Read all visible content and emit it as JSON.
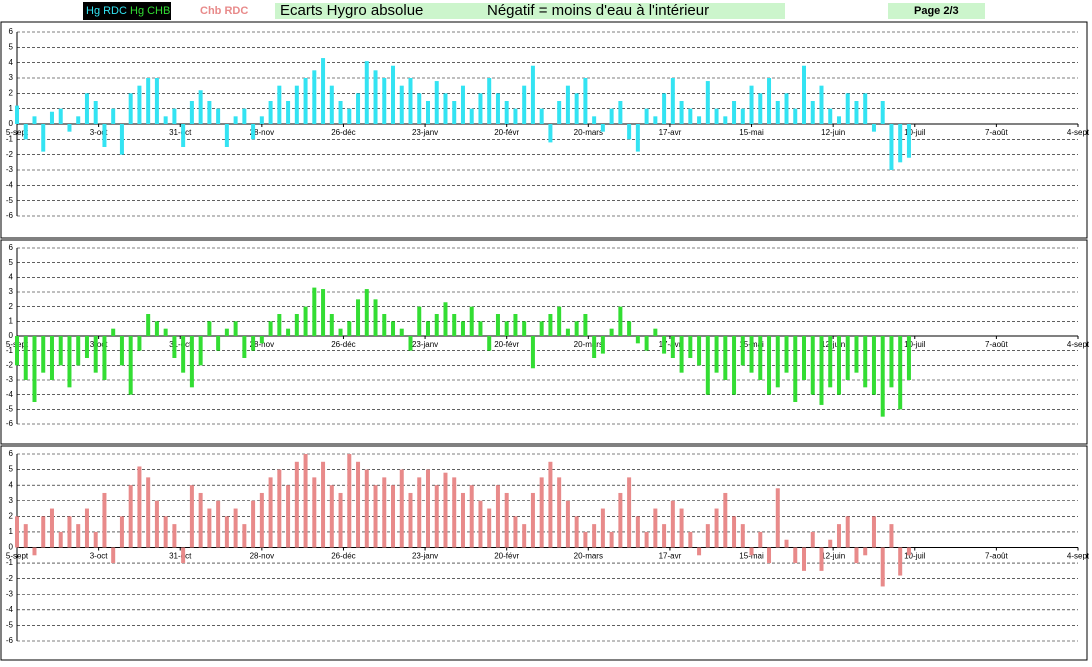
{
  "header": {
    "title": "Ecarts Hygro absolue",
    "subtitle": "Négatif = moins d'eau à l'intérieur",
    "page": "Page 2/3"
  },
  "chart_data": [
    {
      "type": "bar",
      "series": [
        {
          "name": "Hg RDC",
          "color": "#33e3f2",
          "values": [
            1.2,
            -1,
            0.5,
            -1.8,
            0.8,
            1,
            -0.5,
            0.5,
            2,
            1.5,
            -1.5,
            1,
            -2,
            2,
            2.5,
            3,
            3,
            0.5,
            1,
            -1.5,
            1.5,
            2.2,
            1.5,
            1,
            -1.5,
            0.5,
            1,
            -1,
            0.5,
            1.5,
            2.5,
            1.5,
            2.5,
            3,
            3.5,
            4.3,
            2.5,
            1.5,
            1,
            2,
            4.1,
            3.5,
            3,
            3.8,
            2.5,
            3,
            2,
            1.5,
            2.8,
            2,
            1.5,
            2.5,
            1,
            2,
            3,
            2,
            1.5,
            1,
            2.5,
            3.8,
            1,
            -1.2,
            1.5,
            2.5,
            2,
            3,
            0.5,
            -0.5,
            1,
            1.5,
            -1,
            -1.8,
            1,
            0.5,
            2,
            3,
            1.5,
            1,
            0.5,
            2.8,
            1,
            0.5,
            1.5,
            1,
            2.5,
            2,
            3,
            1.5,
            2,
            1,
            3.8,
            1.5,
            2.5,
            1,
            0.5,
            2,
            1.5,
            2,
            -0.5,
            1.5,
            -3,
            -2.5,
            -2.2
          ]
        }
      ],
      "x": [
        0,
        3,
        6,
        9,
        12,
        15,
        18,
        21,
        24,
        27,
        30,
        33,
        36,
        39,
        42,
        45,
        48,
        51,
        54,
        57,
        60,
        63,
        66,
        69,
        72,
        75,
        78,
        81,
        84,
        87,
        90,
        93,
        96,
        99,
        102,
        105,
        108,
        111,
        114,
        117,
        120,
        123,
        126,
        129,
        132,
        135,
        138,
        141,
        144,
        147,
        150,
        153,
        156,
        159,
        162,
        165,
        168,
        171,
        174,
        177,
        180,
        183,
        186,
        189,
        192,
        195,
        198,
        201,
        204,
        207,
        210,
        213,
        216,
        219,
        222,
        225,
        228,
        231,
        234,
        237,
        240,
        243,
        246,
        249,
        252,
        255,
        258,
        261,
        264,
        267,
        270,
        273,
        276,
        279,
        282,
        285,
        288,
        291,
        294,
        297,
        300,
        303,
        306
      ],
      "xlim": [
        0,
        364
      ],
      "xticks": [
        {
          "value": 0,
          "label": "5-sept"
        },
        {
          "value": 28,
          "label": "3-oct"
        },
        {
          "value": 56,
          "label": "31-oct"
        },
        {
          "value": 84,
          "label": "28-nov"
        },
        {
          "value": 112,
          "label": "26-déc"
        },
        {
          "value": 140,
          "label": "23-janv"
        },
        {
          "value": 168,
          "label": "20-févr"
        },
        {
          "value": 196,
          "label": "20-mars"
        },
        {
          "value": 224,
          "label": "17-avr"
        },
        {
          "value": 252,
          "label": "15-mai"
        },
        {
          "value": 280,
          "label": "12-juin"
        },
        {
          "value": 308,
          "label": "10-juil"
        },
        {
          "value": 336,
          "label": "7-août"
        },
        {
          "value": 364,
          "label": "4-sept"
        }
      ],
      "ylim": [
        -6,
        6
      ],
      "yticks": [
        -6,
        -5,
        -4,
        -3,
        -2,
        -1,
        0,
        1,
        2,
        3,
        4,
        5,
        6
      ],
      "grid": true
    },
    {
      "type": "bar",
      "series": [
        {
          "name": "Hg CHB",
          "color": "#33dd33",
          "values": [
            -2,
            -3,
            -4.5,
            -2.5,
            -3,
            -2,
            -3.5,
            -2,
            -1.5,
            -2.5,
            -3,
            0.5,
            -2,
            -4,
            -1,
            1.5,
            1,
            0.5,
            -1.5,
            -2.5,
            -3.5,
            -2,
            1,
            -1,
            0.5,
            1,
            -1.5,
            -1,
            -0.5,
            1,
            1.5,
            0.5,
            1.5,
            2,
            3.3,
            3.2,
            1.5,
            0.5,
            1,
            2.5,
            3.2,
            2.5,
            1.5,
            1,
            0.5,
            -1,
            2,
            1,
            1.5,
            2.3,
            1.5,
            1,
            2,
            1,
            -1,
            1.5,
            1,
            1.5,
            1,
            -2.2,
            1,
            1.5,
            2,
            0.5,
            1,
            1.5,
            -1.5,
            -1.2,
            0.5,
            2,
            1,
            -0.5,
            -1,
            0.5,
            -1.2,
            -1.5,
            -2.5,
            -1.5,
            -2,
            -4,
            -2.5,
            -3,
            -4,
            -2,
            -2.5,
            -3,
            -4,
            -3.5,
            -2.5,
            -4.5,
            -3,
            -4,
            -4.7,
            -3.5,
            -4,
            -3,
            -2.5,
            -3.5,
            -4,
            -5.5,
            -3.5,
            -5,
            -3
          ]
        }
      ],
      "x": [
        0,
        3,
        6,
        9,
        12,
        15,
        18,
        21,
        24,
        27,
        30,
        33,
        36,
        39,
        42,
        45,
        48,
        51,
        54,
        57,
        60,
        63,
        66,
        69,
        72,
        75,
        78,
        81,
        84,
        87,
        90,
        93,
        96,
        99,
        102,
        105,
        108,
        111,
        114,
        117,
        120,
        123,
        126,
        129,
        132,
        135,
        138,
        141,
        144,
        147,
        150,
        153,
        156,
        159,
        162,
        165,
        168,
        171,
        174,
        177,
        180,
        183,
        186,
        189,
        192,
        195,
        198,
        201,
        204,
        207,
        210,
        213,
        216,
        219,
        222,
        225,
        228,
        231,
        234,
        237,
        240,
        243,
        246,
        249,
        252,
        255,
        258,
        261,
        264,
        267,
        270,
        273,
        276,
        279,
        282,
        285,
        288,
        291,
        294,
        297,
        300,
        303,
        306
      ],
      "xlim": [
        0,
        364
      ],
      "xticks": [
        {
          "value": 0,
          "label": "5-sept"
        },
        {
          "value": 28,
          "label": "3-oct"
        },
        {
          "value": 56,
          "label": "31-oct"
        },
        {
          "value": 84,
          "label": "28-nov"
        },
        {
          "value": 112,
          "label": "26-déc"
        },
        {
          "value": 140,
          "label": "23-janv"
        },
        {
          "value": 168,
          "label": "20-févr"
        },
        {
          "value": 196,
          "label": "20-mars"
        },
        {
          "value": 224,
          "label": "17-avr"
        },
        {
          "value": 252,
          "label": "15-mai"
        },
        {
          "value": 280,
          "label": "12-juin"
        },
        {
          "value": 308,
          "label": "10-juil"
        },
        {
          "value": 336,
          "label": "7-août"
        },
        {
          "value": 364,
          "label": "4-sept"
        }
      ],
      "ylim": [
        -6,
        6
      ],
      "yticks": [
        -6,
        -5,
        -4,
        -3,
        -2,
        -1,
        0,
        1,
        2,
        3,
        4,
        5,
        6
      ],
      "grid": true
    },
    {
      "type": "bar",
      "series": [
        {
          "name": "Chb RDC",
          "color": "#e88a8a",
          "values": [
            2,
            1.5,
            -0.5,
            2,
            2.5,
            1,
            2,
            1.5,
            2.5,
            1,
            3.5,
            -1,
            2,
            4,
            5.2,
            4.5,
            3,
            2,
            1.5,
            -1,
            4,
            3.5,
            2.5,
            3,
            2,
            2.5,
            1.5,
            3,
            3.5,
            4.5,
            5,
            4,
            5.5,
            6,
            4.5,
            5.5,
            4,
            3.5,
            6,
            5.5,
            5,
            4,
            4.5,
            4,
            5,
            3.5,
            4.5,
            5,
            4,
            4.8,
            4.5,
            3.5,
            4,
            3,
            2.5,
            4,
            3.5,
            2,
            1.5,
            3.5,
            4.5,
            5.5,
            4.5,
            3,
            2,
            1,
            1.5,
            2.5,
            1,
            3.5,
            4.5,
            2,
            1,
            2.5,
            1.5,
            3,
            2.5,
            1,
            -0.5,
            1.5,
            2.5,
            3.5,
            2,
            1.5,
            -0.5,
            1,
            -1,
            3.8,
            0.5,
            -1,
            -1.5,
            1,
            -1.5,
            0.5,
            1.5,
            2,
            -1,
            -0.5,
            2,
            -2.5,
            1.5,
            -1.8,
            -0.5
          ]
        }
      ],
      "x": [
        0,
        3,
        6,
        9,
        12,
        15,
        18,
        21,
        24,
        27,
        30,
        33,
        36,
        39,
        42,
        45,
        48,
        51,
        54,
        57,
        60,
        63,
        66,
        69,
        72,
        75,
        78,
        81,
        84,
        87,
        90,
        93,
        96,
        99,
        102,
        105,
        108,
        111,
        114,
        117,
        120,
        123,
        126,
        129,
        132,
        135,
        138,
        141,
        144,
        147,
        150,
        153,
        156,
        159,
        162,
        165,
        168,
        171,
        174,
        177,
        180,
        183,
        186,
        189,
        192,
        195,
        198,
        201,
        204,
        207,
        210,
        213,
        216,
        219,
        222,
        225,
        228,
        231,
        234,
        237,
        240,
        243,
        246,
        249,
        252,
        255,
        258,
        261,
        264,
        267,
        270,
        273,
        276,
        279,
        282,
        285,
        288,
        291,
        294,
        297,
        300,
        303,
        306
      ],
      "xlim": [
        0,
        364
      ],
      "xticks": [
        {
          "value": 0,
          "label": "5-sept"
        },
        {
          "value": 28,
          "label": "3-oct"
        },
        {
          "value": 56,
          "label": "31-oct"
        },
        {
          "value": 84,
          "label": "28-nov"
        },
        {
          "value": 112,
          "label": "26-déc"
        },
        {
          "value": 140,
          "label": "23-janv"
        },
        {
          "value": 168,
          "label": "20-févr"
        },
        {
          "value": 196,
          "label": "20-mars"
        },
        {
          "value": 224,
          "label": "17-avr"
        },
        {
          "value": 252,
          "label": "15-mai"
        },
        {
          "value": 280,
          "label": "12-juin"
        },
        {
          "value": 308,
          "label": "10-juil"
        },
        {
          "value": 336,
          "label": "7-août"
        },
        {
          "value": 364,
          "label": "4-sept"
        }
      ],
      "ylim": [
        -6,
        6
      ],
      "yticks": [
        -6,
        -5,
        -4,
        -3,
        -2,
        -1,
        0,
        1,
        2,
        3,
        4,
        5,
        6
      ],
      "grid": true
    }
  ]
}
